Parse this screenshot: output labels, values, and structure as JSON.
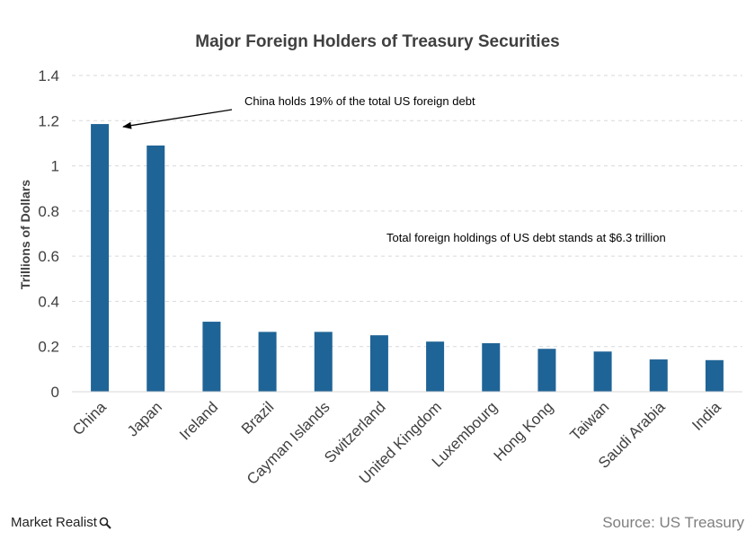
{
  "chart_data": {
    "type": "bar",
    "title": "Major Foreign Holders of Treasury Securities",
    "ylabel": "Trillions of Dollars",
    "xlabel": "",
    "ylim": [
      0,
      1.4
    ],
    "yticks": [
      0,
      0.2,
      0.4,
      0.6,
      0.8,
      1,
      1.2,
      1.4
    ],
    "ytick_labels": [
      "0",
      "0.2",
      "0.4",
      "0.6",
      "0.8",
      "1",
      "1.2",
      "1.4"
    ],
    "grid": true,
    "categories": [
      "China",
      "Japan",
      "Ireland",
      "Brazil",
      "Cayman Islands",
      "Switzerland",
      "United Kingdom",
      "Luxembourg",
      "Hong Kong",
      "Taiwan",
      "Saudi Arabia",
      "India"
    ],
    "values": [
      1.185,
      1.09,
      0.31,
      0.265,
      0.265,
      0.25,
      0.222,
      0.215,
      0.19,
      0.178,
      0.143,
      0.14
    ],
    "bar_color": "#1f6496",
    "annotations": [
      {
        "text": "China holds 19% of the total US foreign debt",
        "arrow_to_category": "China"
      },
      {
        "text": "Total foreign holdings of US debt stands at $6.3  trillion"
      }
    ]
  },
  "footer": {
    "brand": "Market Realist",
    "brand_icon": "magnifier-icon",
    "source": "Source: US Treasury"
  }
}
